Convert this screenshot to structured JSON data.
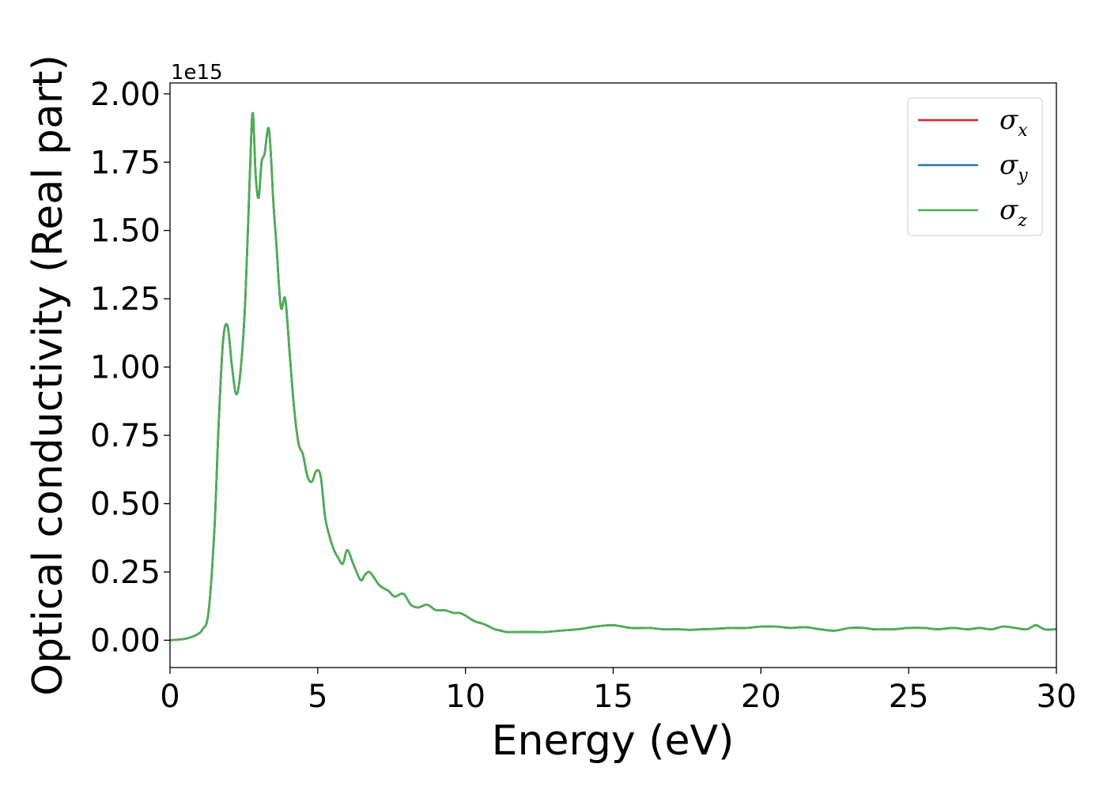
{
  "chart_data": {
    "type": "line",
    "title": "",
    "xlabel": "Energy (eV)",
    "ylabel": "Optical conductivity (Real part)",
    "y_offset_label": "1e15",
    "xlim": [
      0,
      30
    ],
    "ylim": [
      -0.1,
      2.04
    ],
    "xticks": [
      0,
      5,
      10,
      15,
      20,
      25,
      30
    ],
    "yticks": [
      0.0,
      0.25,
      0.5,
      0.75,
      1.0,
      1.25,
      1.5,
      1.75,
      2.0
    ],
    "xtick_labels": [
      "0",
      "5",
      "10",
      "15",
      "20",
      "25",
      "30"
    ],
    "ytick_labels": [
      "0.00",
      "0.25",
      "0.50",
      "0.75",
      "1.00",
      "1.25",
      "1.50",
      "1.75",
      "2.00"
    ],
    "grid": false,
    "legend_position": "top-right",
    "x": [
      0,
      0.5,
      0.9,
      1.1,
      1.3,
      1.5,
      1.65,
      1.8,
      1.95,
      2.1,
      2.25,
      2.4,
      2.55,
      2.7,
      2.8,
      2.9,
      3.0,
      3.1,
      3.2,
      3.35,
      3.5,
      3.6,
      3.75,
      3.9,
      4.05,
      4.2,
      4.35,
      4.5,
      4.65,
      4.8,
      4.95,
      5.1,
      5.25,
      5.4,
      5.55,
      5.7,
      5.85,
      6.0,
      6.2,
      6.45,
      6.6,
      6.75,
      6.9,
      7.1,
      7.4,
      7.6,
      7.9,
      8.15,
      8.4,
      8.7,
      9.0,
      9.3,
      9.6,
      9.8,
      10.0,
      10.3,
      10.6,
      10.8,
      11.0,
      11.2,
      11.4,
      11.7,
      12.0,
      12.3,
      12.7,
      13.2,
      13.8,
      14.4,
      15.0,
      15.6,
      16.2,
      16.7,
      17.2,
      17.6,
      18.0,
      18.5,
      19.0,
      19.5,
      20.0,
      20.5,
      21.0,
      21.5,
      22.0,
      22.5,
      23.0,
      23.5,
      23.8,
      24.2,
      24.5,
      25.0,
      25.5,
      26.0,
      26.5,
      27.0,
      27.4,
      27.8,
      28.2,
      28.6,
      29.0,
      29.3,
      29.6,
      30.0
    ],
    "series": [
      {
        "name": "σx",
        "color": "#d62728",
        "values": [
          0.0,
          0.005,
          0.02,
          0.04,
          0.1,
          0.4,
          0.8,
          1.1,
          1.15,
          1.0,
          0.9,
          1.0,
          1.25,
          1.7,
          1.93,
          1.7,
          1.62,
          1.75,
          1.78,
          1.87,
          1.6,
          1.45,
          1.22,
          1.25,
          1.05,
          0.85,
          0.72,
          0.68,
          0.6,
          0.58,
          0.62,
          0.6,
          0.45,
          0.38,
          0.33,
          0.3,
          0.28,
          0.33,
          0.28,
          0.22,
          0.24,
          0.25,
          0.23,
          0.2,
          0.18,
          0.16,
          0.17,
          0.13,
          0.12,
          0.13,
          0.11,
          0.11,
          0.1,
          0.1,
          0.09,
          0.07,
          0.06,
          0.05,
          0.04,
          0.035,
          0.03,
          0.03,
          0.03,
          0.03,
          0.03,
          0.035,
          0.04,
          0.05,
          0.055,
          0.045,
          0.045,
          0.04,
          0.04,
          0.038,
          0.04,
          0.042,
          0.045,
          0.045,
          0.05,
          0.05,
          0.045,
          0.048,
          0.04,
          0.035,
          0.045,
          0.045,
          0.04,
          0.04,
          0.04,
          0.045,
          0.045,
          0.04,
          0.045,
          0.04,
          0.045,
          0.04,
          0.05,
          0.045,
          0.04,
          0.055,
          0.04,
          0.04
        ]
      },
      {
        "name": "σy",
        "color": "#1f77b4",
        "values": [
          0.0,
          0.005,
          0.02,
          0.04,
          0.1,
          0.4,
          0.8,
          1.1,
          1.15,
          1.0,
          0.9,
          1.0,
          1.25,
          1.7,
          1.93,
          1.7,
          1.62,
          1.75,
          1.78,
          1.87,
          1.6,
          1.45,
          1.22,
          1.25,
          1.05,
          0.85,
          0.72,
          0.68,
          0.6,
          0.58,
          0.62,
          0.6,
          0.45,
          0.38,
          0.33,
          0.3,
          0.28,
          0.33,
          0.28,
          0.22,
          0.24,
          0.25,
          0.23,
          0.2,
          0.18,
          0.16,
          0.17,
          0.13,
          0.12,
          0.13,
          0.11,
          0.11,
          0.1,
          0.1,
          0.09,
          0.07,
          0.06,
          0.05,
          0.04,
          0.035,
          0.03,
          0.03,
          0.03,
          0.03,
          0.03,
          0.035,
          0.04,
          0.05,
          0.055,
          0.045,
          0.045,
          0.04,
          0.04,
          0.038,
          0.04,
          0.042,
          0.045,
          0.045,
          0.05,
          0.05,
          0.045,
          0.048,
          0.04,
          0.035,
          0.045,
          0.045,
          0.04,
          0.04,
          0.04,
          0.045,
          0.045,
          0.04,
          0.045,
          0.04,
          0.045,
          0.04,
          0.05,
          0.045,
          0.04,
          0.055,
          0.04,
          0.04
        ]
      },
      {
        "name": "σz",
        "color": "#4caf50",
        "values": [
          0.0,
          0.005,
          0.02,
          0.04,
          0.1,
          0.4,
          0.8,
          1.1,
          1.15,
          1.0,
          0.9,
          1.0,
          1.25,
          1.7,
          1.93,
          1.7,
          1.62,
          1.75,
          1.78,
          1.87,
          1.6,
          1.45,
          1.22,
          1.25,
          1.05,
          0.85,
          0.72,
          0.68,
          0.6,
          0.58,
          0.62,
          0.6,
          0.45,
          0.38,
          0.33,
          0.3,
          0.28,
          0.33,
          0.28,
          0.22,
          0.24,
          0.25,
          0.23,
          0.2,
          0.18,
          0.16,
          0.17,
          0.13,
          0.12,
          0.13,
          0.11,
          0.11,
          0.1,
          0.1,
          0.09,
          0.07,
          0.06,
          0.05,
          0.04,
          0.035,
          0.03,
          0.03,
          0.03,
          0.03,
          0.03,
          0.035,
          0.04,
          0.05,
          0.055,
          0.045,
          0.045,
          0.04,
          0.04,
          0.038,
          0.04,
          0.042,
          0.045,
          0.045,
          0.05,
          0.05,
          0.045,
          0.048,
          0.04,
          0.035,
          0.045,
          0.045,
          0.04,
          0.04,
          0.04,
          0.045,
          0.045,
          0.04,
          0.045,
          0.04,
          0.045,
          0.04,
          0.05,
          0.045,
          0.04,
          0.055,
          0.04,
          0.04
        ]
      }
    ],
    "legend": [
      {
        "symbol": "σ",
        "subscript": "x",
        "color": "#d62728"
      },
      {
        "symbol": "σ",
        "subscript": "y",
        "color": "#1f77b4"
      },
      {
        "symbol": "σ",
        "subscript": "z",
        "color": "#4caf50"
      }
    ]
  }
}
